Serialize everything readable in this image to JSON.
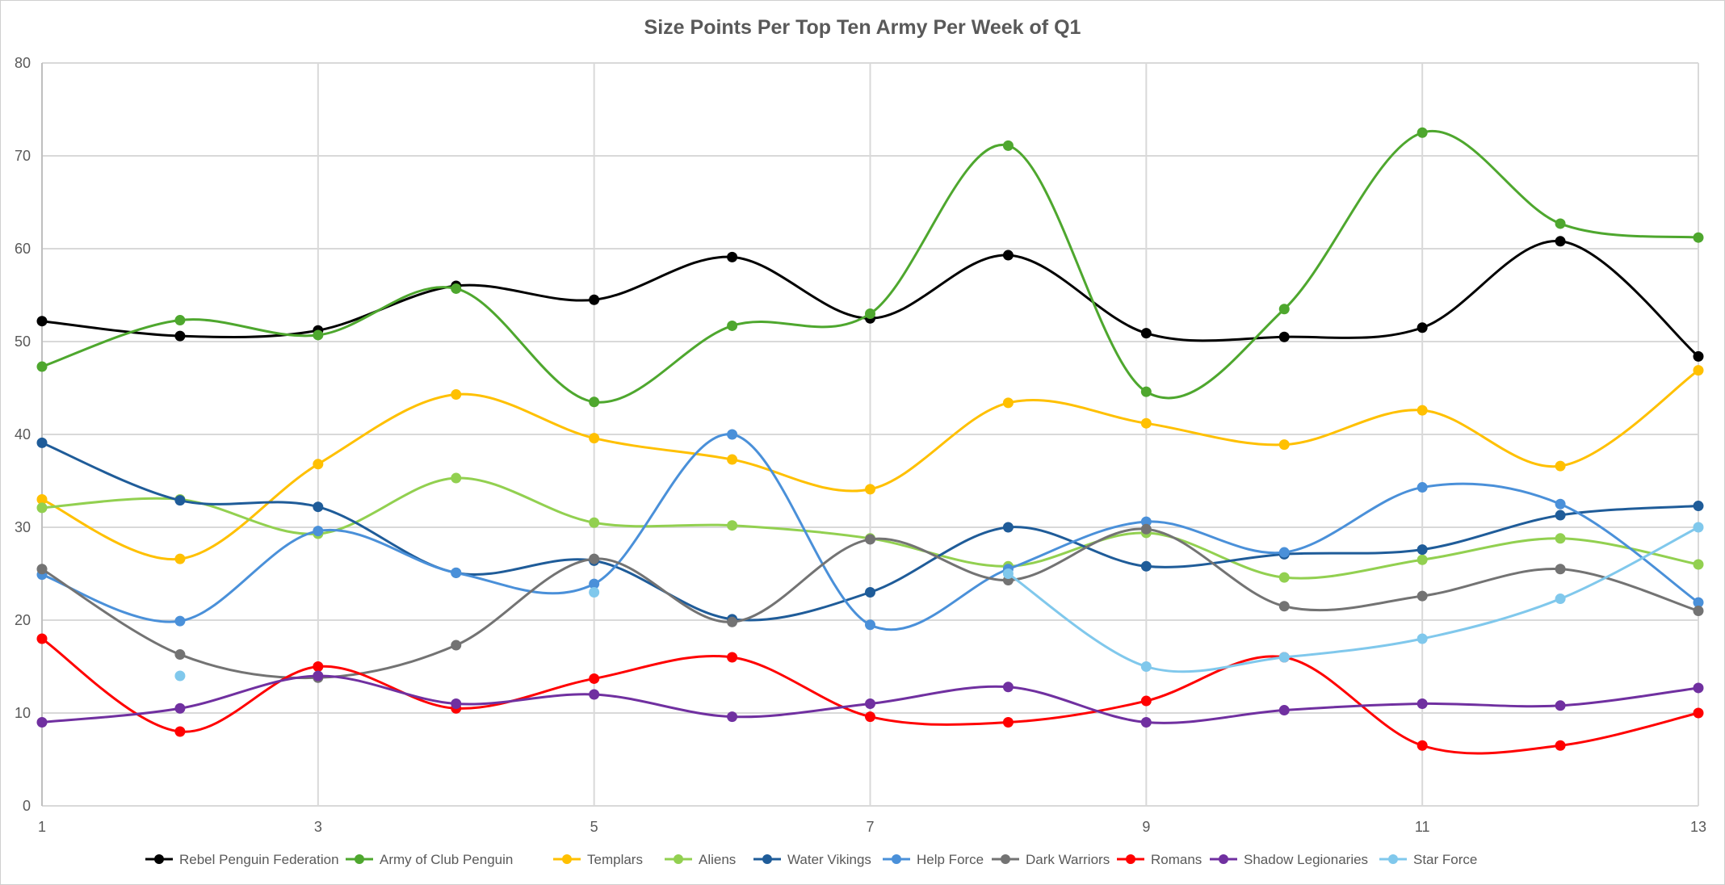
{
  "chart_data": {
    "type": "line",
    "title": "Size Points Per Top Ten Army Per Week of Q1",
    "xlabel": "",
    "ylabel": "",
    "x": [
      1,
      2,
      3,
      4,
      5,
      6,
      7,
      8,
      9,
      10,
      11,
      12,
      13
    ],
    "x_tick_labels": [
      "1",
      "3",
      "5",
      "7",
      "9",
      "11",
      "13"
    ],
    "x_tick_values": [
      1,
      3,
      5,
      7,
      9,
      11,
      13
    ],
    "y_tick_labels": [
      "0",
      "10",
      "20",
      "30",
      "40",
      "50",
      "60",
      "70",
      "80"
    ],
    "ylim": [
      0,
      80
    ],
    "grid": true,
    "smooth": true,
    "legend_position": "bottom",
    "series": [
      {
        "name": "Rebel Penguin Federation",
        "color": "#000000",
        "values": [
          52.2,
          50.6,
          51.2,
          56.0,
          54.5,
          59.1,
          52.5,
          59.3,
          50.9,
          50.5,
          51.5,
          60.8,
          48.4
        ]
      },
      {
        "name": "Army of Club Penguin",
        "color": "#4ea72e",
        "values": [
          47.3,
          52.3,
          50.7,
          55.7,
          43.5,
          51.7,
          53.0,
          71.1,
          44.6,
          53.5,
          72.5,
          62.7,
          61.2
        ]
      },
      {
        "name": "Templars",
        "color": "#ffc000",
        "values": [
          33.0,
          26.6,
          36.8,
          44.3,
          39.6,
          37.3,
          34.1,
          43.4,
          41.2,
          38.9,
          42.6,
          36.6,
          46.9
        ]
      },
      {
        "name": "Aliens",
        "color": "#92d050",
        "values": [
          32.1,
          33.0,
          29.3,
          35.3,
          30.5,
          30.2,
          28.8,
          25.8,
          29.4,
          24.6,
          26.5,
          28.8,
          26.0
        ]
      },
      {
        "name": "Water Vikings",
        "color": "#1f5c99",
        "values": [
          39.1,
          32.9,
          32.2,
          25.1,
          26.4,
          20.1,
          23.0,
          30.0,
          25.8,
          27.1,
          27.6,
          31.3,
          32.3
        ]
      },
      {
        "name": "Help Force",
        "color": "#4a90d9",
        "values": [
          24.9,
          19.9,
          29.6,
          25.1,
          23.9,
          40.0,
          19.5,
          25.5,
          30.6,
          27.3,
          34.3,
          32.5,
          21.9
        ]
      },
      {
        "name": "Dark Warriors",
        "color": "#737373",
        "values": [
          25.5,
          16.3,
          13.8,
          17.3,
          26.6,
          19.8,
          28.7,
          24.3,
          29.8,
          21.5,
          22.6,
          25.5,
          21.0
        ]
      },
      {
        "name": "Romans",
        "color": "#ff0000",
        "values": [
          18.0,
          8.0,
          15.0,
          10.5,
          13.7,
          16.0,
          9.6,
          9.0,
          11.3,
          16.0,
          6.5,
          6.5,
          10.0
        ]
      },
      {
        "name": "Shadow Legionaries",
        "color": "#7030a0",
        "values": [
          9.0,
          10.5,
          14.0,
          11.0,
          12.0,
          9.6,
          11.0,
          12.8,
          9.0,
          10.3,
          11.0,
          10.8,
          12.7
        ]
      },
      {
        "name": "Star Force",
        "color": "#80c8ec",
        "values": [
          null,
          14.0,
          null,
          null,
          23.0,
          null,
          null,
          25.0,
          15.0,
          16.0,
          18.0,
          22.3,
          30.0
        ]
      }
    ]
  }
}
